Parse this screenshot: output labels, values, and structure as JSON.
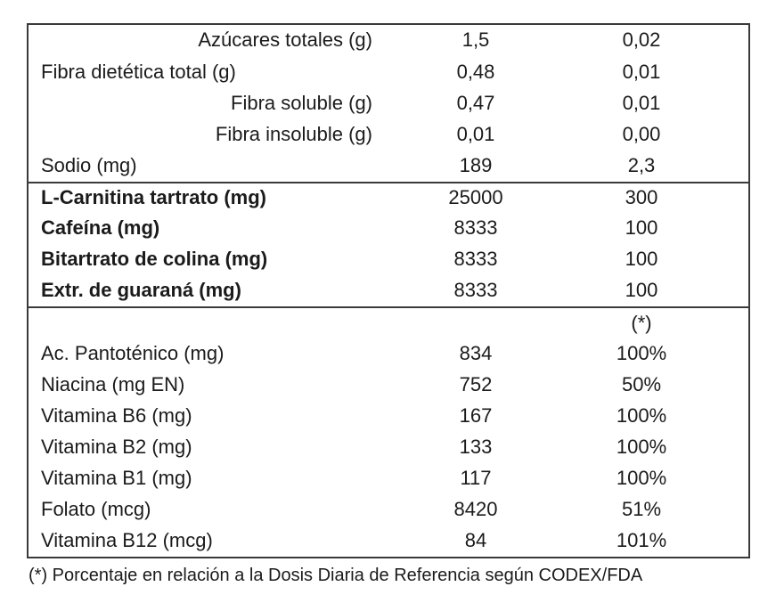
{
  "colors": {
    "background": "#ffffff",
    "border": "#3a3a3a",
    "text": "#1b1b1b"
  },
  "table": {
    "rows": [
      {
        "label": "Azúcares totales (g)",
        "v1": "1,5",
        "v2": "0,02"
      },
      {
        "label": "Fibra dietética total (g)",
        "v1": "0,48",
        "v2": "0,01"
      },
      {
        "label": "Fibra soluble (g)",
        "v1": "0,47",
        "v2": "0,01"
      },
      {
        "label": "Fibra insoluble (g)",
        "v1": "0,01",
        "v2": "0,00"
      },
      {
        "label": "Sodio (mg)",
        "v1": "189",
        "v2": "2,3"
      },
      {
        "label": "L-Carnitina tartrato (mg)",
        "v1": "25000",
        "v2": "300"
      },
      {
        "label": "Cafeína (mg)",
        "v1": "8333",
        "v2": "100"
      },
      {
        "label": "Bitartrato de colina (mg)",
        "v1": "8333",
        "v2": "100"
      },
      {
        "label": "Extr. de guaraná (mg)",
        "v1": "8333",
        "v2": "100"
      },
      {
        "label": "",
        "v1": "",
        "v2": "(*)"
      },
      {
        "label": "Ac. Pantoténico (mg)",
        "v1": "834",
        "v2": "100%"
      },
      {
        "label": "Niacina (mg EN)",
        "v1": "752",
        "v2": "50%"
      },
      {
        "label": "Vitamina B6 (mg)",
        "v1": "167",
        "v2": "100%"
      },
      {
        "label": "Vitamina B2 (mg)",
        "v1": "133",
        "v2": "100%"
      },
      {
        "label": "Vitamina B1 (mg)",
        "v1": "117",
        "v2": "100%"
      },
      {
        "label": "Folato (mcg)",
        "v1": "8420",
        "v2": "51%"
      },
      {
        "label": "Vitamina B12 (mcg)",
        "v1": "84",
        "v2": "101%"
      }
    ],
    "footnote": "(*) Porcentaje en relación a la Dosis Diaria de Referencia según CODEX/FDA"
  }
}
